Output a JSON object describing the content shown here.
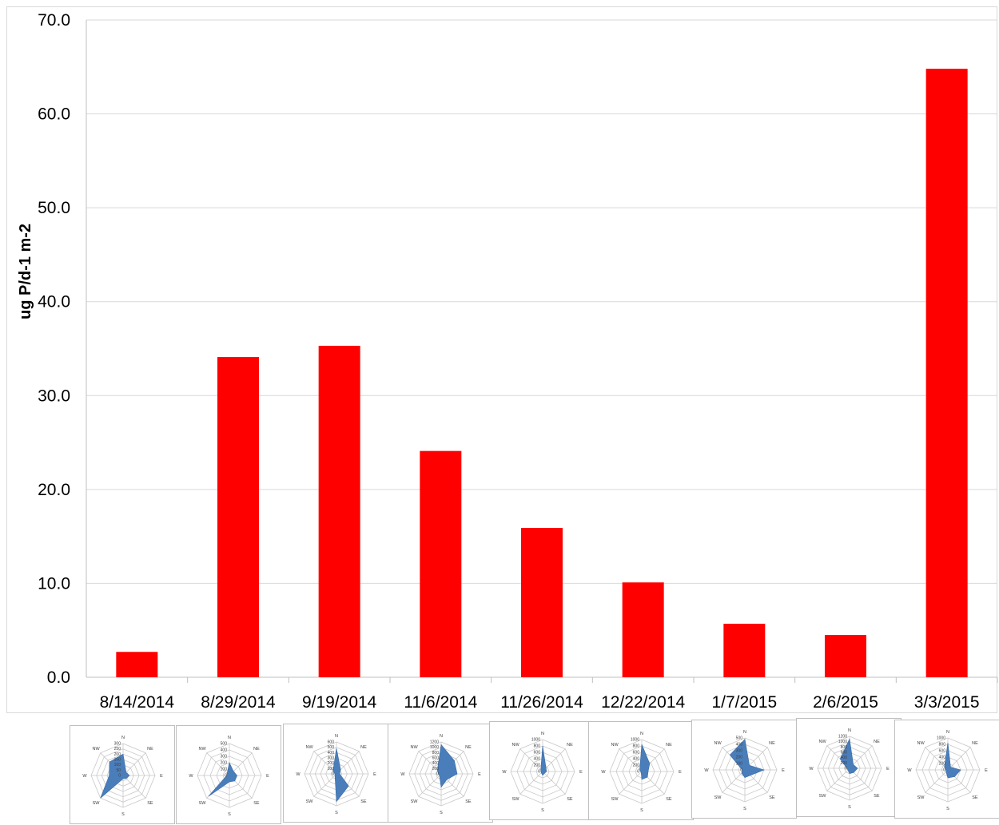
{
  "chart_data": [
    {
      "type": "bar",
      "title": "",
      "xlabel": "",
      "ylabel": "ug P/d-1 m-2",
      "ylim": [
        0,
        70
      ],
      "yticks": [
        "0.0",
        "10.0",
        "20.0",
        "30.0",
        "40.0",
        "50.0",
        "60.0",
        "70.0"
      ],
      "grid": true,
      "legend": "none",
      "bar_color": "#ff0000",
      "categories": [
        "8/14/2014",
        "8/29/2014",
        "9/19/2014",
        "11/6/2014",
        "11/26/2014",
        "12/22/2014",
        "1/7/2015",
        "2/6/2015",
        "3/3/2015"
      ],
      "values": [
        2.7,
        34.1,
        35.3,
        24.1,
        15.9,
        10.1,
        5.7,
        4.5,
        64.8
      ]
    },
    {
      "type": "radar",
      "description": "Wind direction rose per sampling date",
      "directions": [
        "N",
        "NE",
        "E",
        "SE",
        "S",
        "SW",
        "W",
        "NW"
      ],
      "fill_color": "#4a7ebb",
      "roses": [
        {
          "date": "8/14/2014",
          "rmax": 300,
          "ticks": [
            "0",
            "50",
            "100",
            "150",
            "200",
            "250",
            "300"
          ],
          "values": [
            200,
            40,
            60,
            40,
            30,
            300,
            130,
            180
          ]
        },
        {
          "date": "8/29/2014",
          "rmax": 500,
          "ticks": [
            "0",
            "100",
            "200",
            "300",
            "400",
            "500"
          ],
          "values": [
            200,
            90,
            120,
            120,
            100,
            460,
            40,
            50
          ]
        },
        {
          "date": "9/19/2014",
          "rmax": 600,
          "ticks": [
            "0",
            "100",
            "200",
            "300",
            "400",
            "500",
            "600"
          ],
          "values": [
            480,
            110,
            60,
            320,
            520,
            40,
            30,
            90
          ]
        },
        {
          "date": "11/6/2014",
          "rmax": 1200,
          "ticks": [
            "0",
            "200",
            "400",
            "600",
            "800",
            "1000",
            "1200"
          ],
          "values": [
            1100,
            700,
            600,
            300,
            500,
            90,
            100,
            200
          ]
        },
        {
          "date": "11/26/2014",
          "rmax": 1000,
          "ticks": [
            "0",
            "200",
            "400",
            "600",
            "800",
            "1000"
          ],
          "values": [
            800,
            150,
            120,
            80,
            120,
            60,
            50,
            80
          ]
        },
        {
          "date": "12/22/2014",
          "rmax": 1000,
          "ticks": [
            "0",
            "200",
            "400",
            "600",
            "800",
            "1000"
          ],
          "values": [
            850,
            350,
            200,
            250,
            250,
            30,
            40,
            90
          ]
        },
        {
          "date": "1/7/2015",
          "rmax": 500,
          "ticks": [
            "0",
            "100",
            "200",
            "300",
            "400",
            "500"
          ],
          "values": [
            480,
            100,
            300,
            120,
            120,
            70,
            40,
            330
          ]
        },
        {
          "date": "2/6/2015",
          "rmax": 1200,
          "ticks": [
            "0",
            "200",
            "400",
            "600",
            "800",
            "1000",
            "1200"
          ],
          "values": [
            1100,
            200,
            300,
            220,
            200,
            90,
            100,
            500
          ]
        },
        {
          "date": "3/3/2015",
          "rmax": 1000,
          "ticks": [
            "0",
            "200",
            "400",
            "600",
            "800",
            "1000"
          ],
          "values": [
            850,
            120,
            400,
            300,
            250,
            80,
            60,
            150
          ]
        }
      ]
    }
  ]
}
